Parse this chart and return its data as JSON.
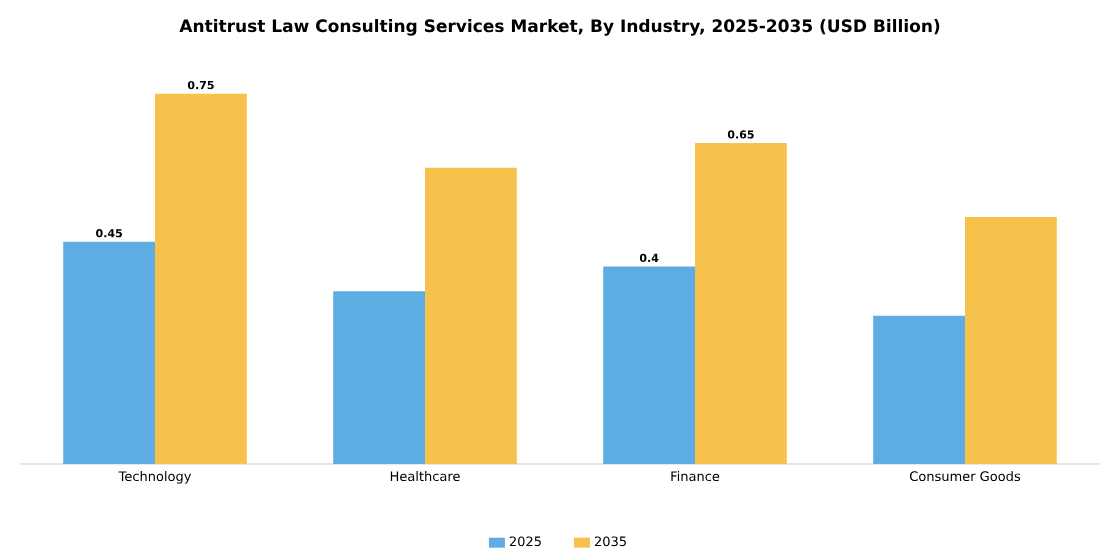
{
  "chart_data": {
    "type": "bar",
    "title": "Antitrust Law Consulting Services Market, By Industry, 2025-2035 (USD Billion)",
    "categories": [
      "Technology",
      "Healthcare",
      "Finance",
      "Consumer Goods"
    ],
    "series": [
      {
        "name": "2025",
        "color": "#5dade2",
        "values": [
          0.45,
          0.35,
          0.4,
          0.3
        ],
        "value_labels": [
          "0.45",
          null,
          "0.4",
          null
        ]
      },
      {
        "name": "2035",
        "color": "#f7c24b",
        "values": [
          0.75,
          0.6,
          0.65,
          0.5
        ],
        "value_labels": [
          "0.75",
          null,
          "0.65",
          null
        ]
      }
    ],
    "legend": "bottom"
  }
}
